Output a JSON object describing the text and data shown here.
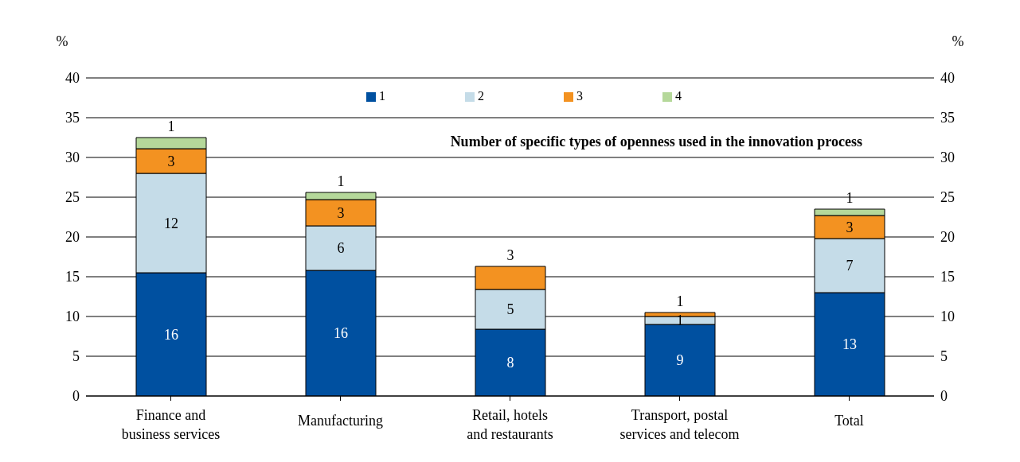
{
  "chart_data": {
    "type": "bar",
    "stacked": true,
    "title": "Number of specific types of openness used in the innovation process",
    "ylabel": "%",
    "y2label": "%",
    "categories": [
      "Finance and business services",
      "Manufacturing",
      "Retail, hotels and restaurants",
      "Transport, postal services and telecom",
      "Total"
    ],
    "series": [
      {
        "name": "1",
        "color": "#0050a0",
        "values": [
          15.5,
          15.8,
          8.4,
          9.0,
          13.0
        ],
        "value_labels": [
          "16",
          "16",
          "8",
          "9",
          "13"
        ]
      },
      {
        "name": "2",
        "color": "#c5dce8",
        "values": [
          12.5,
          5.6,
          5.0,
          1.0,
          6.8
        ],
        "value_labels": [
          "12",
          "6",
          "5",
          "1",
          "7"
        ]
      },
      {
        "name": "3",
        "color": "#f39221",
        "values": [
          3.1,
          3.3,
          2.9,
          0.5,
          2.9
        ],
        "value_labels": [
          "3",
          "3",
          "3",
          "1",
          "3"
        ]
      },
      {
        "name": "4",
        "color": "#b5d89a",
        "values": [
          1.4,
          0.9,
          null,
          null,
          0.8
        ],
        "value_labels": [
          "1",
          "1",
          null,
          null,
          "1"
        ]
      }
    ],
    "ylim": [
      0,
      40
    ],
    "yticks": [
      0,
      5,
      10,
      15,
      20,
      25,
      30,
      35,
      40
    ],
    "y2lim": [
      0,
      40
    ],
    "y2ticks": [
      0,
      5,
      10,
      15,
      20,
      25,
      30,
      35,
      40
    ],
    "grid": "y",
    "legend": "top"
  }
}
